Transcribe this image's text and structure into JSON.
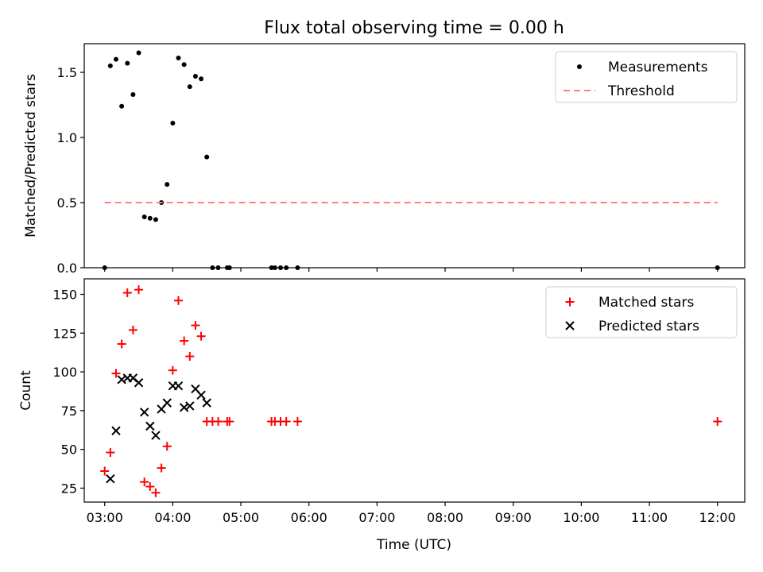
{
  "figure": {
    "title": "Flux total observing time = 0.00 h",
    "xlabel": "Time (UTC)"
  },
  "colors": {
    "measurements": "#000000",
    "threshold": "#ff7f7f",
    "matched": "#ff0000",
    "predicted": "#000000"
  },
  "chart_data": [
    {
      "type": "scatter",
      "ylabel": "Matched/Predicted stars",
      "xlim": [
        "02:42",
        "12:24"
      ],
      "ylim": [
        0,
        1.72
      ],
      "yticks": [
        0.0,
        0.5,
        1.0,
        1.5
      ],
      "ytick_labels": [
        "0.0",
        "0.5",
        "1.0",
        "1.5"
      ],
      "legend": {
        "placement": "top-right",
        "entries": [
          "Measurements",
          "Threshold"
        ]
      },
      "series": [
        {
          "name": "Measurements",
          "marker": "dot",
          "points": [
            [
              "03:00",
              0.0
            ],
            [
              "03:05",
              1.55
            ],
            [
              "03:10",
              1.6
            ],
            [
              "03:15",
              1.24
            ],
            [
              "03:20",
              1.57
            ],
            [
              "03:25",
              1.33
            ],
            [
              "03:30",
              1.65
            ],
            [
              "03:35",
              0.39
            ],
            [
              "03:40",
              0.38
            ],
            [
              "03:45",
              0.37
            ],
            [
              "03:50",
              0.5
            ],
            [
              "03:55",
              0.64
            ],
            [
              "04:00",
              1.11
            ],
            [
              "04:05",
              1.61
            ],
            [
              "04:10",
              1.56
            ],
            [
              "04:15",
              1.39
            ],
            [
              "04:20",
              1.47
            ],
            [
              "04:25",
              1.45
            ],
            [
              "04:30",
              0.85
            ],
            [
              "04:35",
              0.0
            ],
            [
              "04:40",
              0.0
            ],
            [
              "04:48",
              0.0
            ],
            [
              "04:50",
              0.0
            ],
            [
              "05:27",
              0.0
            ],
            [
              "05:30",
              0.0
            ],
            [
              "05:35",
              0.0
            ],
            [
              "05:40",
              0.0
            ],
            [
              "05:50",
              0.0
            ],
            [
              "12:00",
              0.0
            ]
          ]
        },
        {
          "name": "Threshold",
          "style": "dashed",
          "points": [
            [
              "03:00",
              0.5
            ],
            [
              "12:00",
              0.5
            ]
          ]
        }
      ]
    },
    {
      "type": "scatter",
      "ylabel": "Count",
      "xlim": [
        "02:42",
        "12:24"
      ],
      "ylim": [
        16,
        160
      ],
      "yticks": [
        25,
        50,
        75,
        100,
        125,
        150
      ],
      "ytick_labels": [
        "25",
        "50",
        "75",
        "100",
        "125",
        "150"
      ],
      "xticks": [
        "03:00",
        "04:00",
        "05:00",
        "06:00",
        "07:00",
        "08:00",
        "09:00",
        "10:00",
        "11:00",
        "12:00"
      ],
      "xtick_labels": [
        "03:00",
        "04:00",
        "05:00",
        "06:00",
        "07:00",
        "08:00",
        "09:00",
        "10:00",
        "11:00",
        "12:00"
      ],
      "legend": {
        "placement": "top-right",
        "entries": [
          "Matched stars",
          "Predicted stars"
        ]
      },
      "series": [
        {
          "name": "Matched stars",
          "marker": "plus",
          "points": [
            [
              "03:00",
              36
            ],
            [
              "03:05",
              48
            ],
            [
              "03:10",
              99
            ],
            [
              "03:15",
              118
            ],
            [
              "03:20",
              151
            ],
            [
              "03:25",
              127
            ],
            [
              "03:30",
              153
            ],
            [
              "03:35",
              29
            ],
            [
              "03:40",
              26
            ],
            [
              "03:45",
              22
            ],
            [
              "03:50",
              38
            ],
            [
              "03:55",
              52
            ],
            [
              "04:00",
              101
            ],
            [
              "04:05",
              146
            ],
            [
              "04:10",
              120
            ],
            [
              "04:15",
              110
            ],
            [
              "04:20",
              130
            ],
            [
              "04:25",
              123
            ],
            [
              "04:30",
              68
            ],
            [
              "04:35",
              68
            ],
            [
              "04:40",
              68
            ],
            [
              "04:48",
              68
            ],
            [
              "04:50",
              68
            ],
            [
              "05:27",
              68
            ],
            [
              "05:30",
              68
            ],
            [
              "05:35",
              68
            ],
            [
              "05:40",
              68
            ],
            [
              "05:50",
              68
            ],
            [
              "12:00",
              68
            ]
          ]
        },
        {
          "name": "Predicted stars",
          "marker": "x",
          "points": [
            [
              "03:05",
              31
            ],
            [
              "03:10",
              62
            ],
            [
              "03:15",
              95
            ],
            [
              "03:20",
              96
            ],
            [
              "03:25",
              96
            ],
            [
              "03:30",
              93
            ],
            [
              "03:35",
              74
            ],
            [
              "03:40",
              65
            ],
            [
              "03:45",
              59
            ],
            [
              "03:50",
              76
            ],
            [
              "03:55",
              80
            ],
            [
              "04:00",
              91
            ],
            [
              "04:05",
              91
            ],
            [
              "04:10",
              77
            ],
            [
              "04:15",
              78
            ],
            [
              "04:20",
              89
            ],
            [
              "04:25",
              85
            ],
            [
              "04:30",
              80
            ]
          ]
        }
      ]
    }
  ]
}
